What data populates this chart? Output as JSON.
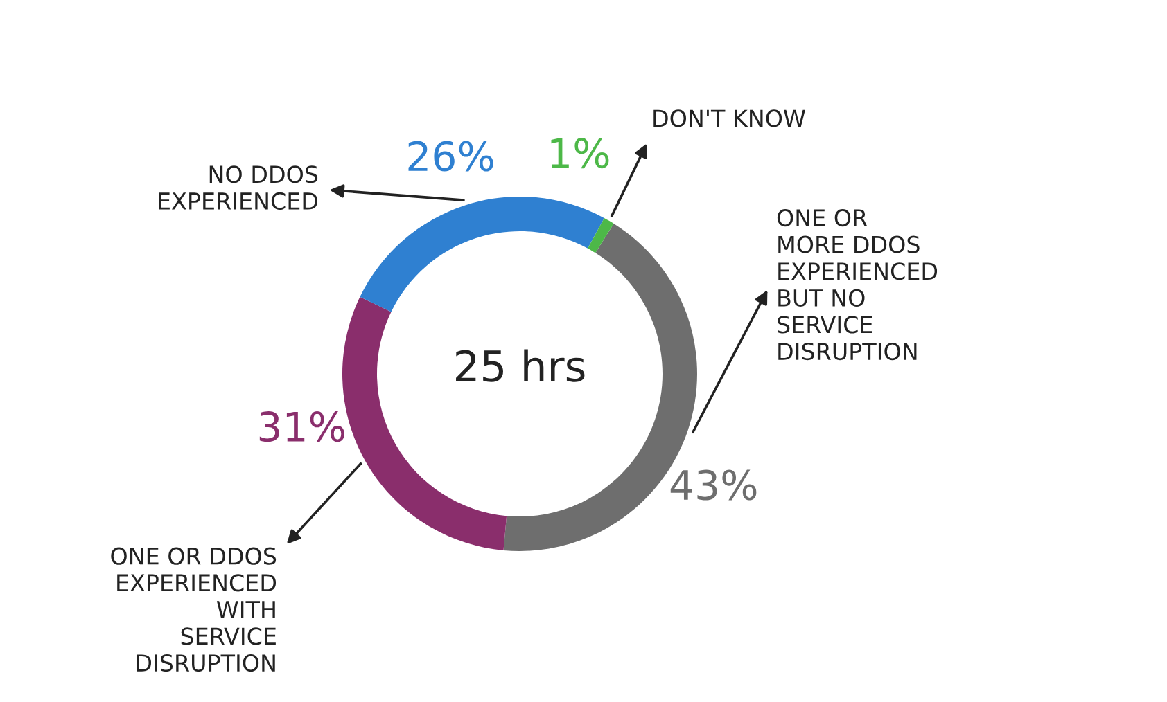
{
  "chart_data": {
    "type": "donut",
    "categories": [
      "ONE OR\nMORE DDOS\nEXPERIENCED\nBUT NO\nSERVICE\nDISRUPTION",
      "ONE OR DDOS\nEXPERIENCED\nWITH\nSERVICE\nDISRUPTION",
      "NO DDOS\nEXPERIENCED",
      "DON'T KNOW"
    ],
    "values": [
      43,
      31,
      26,
      1
    ],
    "colors": [
      "#6e6e6e",
      "#8a2e6c",
      "#2f80d1",
      "#4db848"
    ],
    "value_labels": [
      "43%",
      "31%",
      "26%",
      "1%"
    ],
    "annotations": [
      "25 hrs"
    ]
  }
}
